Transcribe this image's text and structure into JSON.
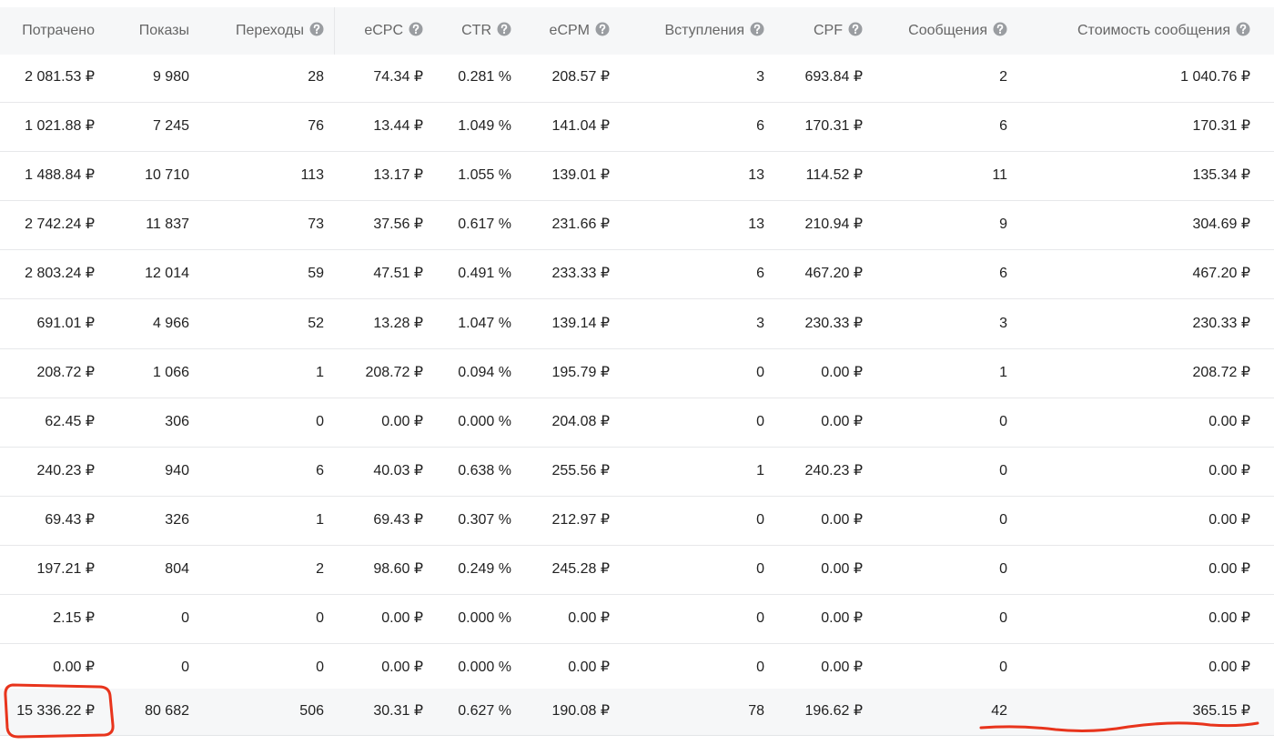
{
  "table": {
    "header": [
      "Потрачено",
      "Показы",
      "Переходы",
      "eCPC",
      "CTR",
      "eCPM",
      "Вступления",
      "CPF",
      "Сообщения",
      "Стоимость сообщения"
    ],
    "rows": [
      [
        "2 081.53 ₽",
        "9 980",
        "28",
        "74.34 ₽",
        "0.281 %",
        "208.57 ₽",
        "3",
        "693.84 ₽",
        "2",
        "1 040.76 ₽"
      ],
      [
        "1 021.88 ₽",
        "7 245",
        "76",
        "13.44 ₽",
        "1.049 %",
        "141.04 ₽",
        "6",
        "170.31 ₽",
        "6",
        "170.31 ₽"
      ],
      [
        "1 488.84 ₽",
        "10 710",
        "113",
        "13.17 ₽",
        "1.055 %",
        "139.01 ₽",
        "13",
        "114.52 ₽",
        "11",
        "135.34 ₽"
      ],
      [
        "2 742.24 ₽",
        "11 837",
        "73",
        "37.56 ₽",
        "0.617 %",
        "231.66 ₽",
        "13",
        "210.94 ₽",
        "9",
        "304.69 ₽"
      ],
      [
        "2 803.24 ₽",
        "12 014",
        "59",
        "47.51 ₽",
        "0.491 %",
        "233.33 ₽",
        "6",
        "467.20 ₽",
        "6",
        "467.20 ₽"
      ],
      [
        "691.01 ₽",
        "4 966",
        "52",
        "13.28 ₽",
        "1.047 %",
        "139.14 ₽",
        "3",
        "230.33 ₽",
        "3",
        "230.33 ₽"
      ],
      [
        "208.72 ₽",
        "1 066",
        "1",
        "208.72 ₽",
        "0.094 %",
        "195.79 ₽",
        "0",
        "0.00 ₽",
        "1",
        "208.72 ₽"
      ],
      [
        "62.45 ₽",
        "306",
        "0",
        "0.00 ₽",
        "0.000 %",
        "204.08 ₽",
        "0",
        "0.00 ₽",
        "0",
        "0.00 ₽"
      ],
      [
        "240.23 ₽",
        "940",
        "6",
        "40.03 ₽",
        "0.638 %",
        "255.56 ₽",
        "1",
        "240.23 ₽",
        "0",
        "0.00 ₽"
      ],
      [
        "69.43 ₽",
        "326",
        "1",
        "69.43 ₽",
        "0.307 %",
        "212.97 ₽",
        "0",
        "0.00 ₽",
        "0",
        "0.00 ₽"
      ],
      [
        "197.21 ₽",
        "804",
        "2",
        "98.60 ₽",
        "0.249 %",
        "245.28 ₽",
        "0",
        "0.00 ₽",
        "0",
        "0.00 ₽"
      ],
      [
        "2.15 ₽",
        "0",
        "0",
        "0.00 ₽",
        "0.000 %",
        "0.00 ₽",
        "0",
        "0.00 ₽",
        "0",
        "0.00 ₽"
      ],
      [
        "0.00 ₽",
        "0",
        "0",
        "0.00 ₽",
        "0.000 %",
        "0.00 ₽",
        "0",
        "0.00 ₽",
        "0",
        "0.00 ₽"
      ]
    ],
    "total": [
      "15 336.22 ₽",
      "80 682",
      "506",
      "30.31 ₽",
      "0.627 %",
      "190.08 ₽",
      "78",
      "196.62 ₽",
      "42",
      "365.15 ₽"
    ]
  }
}
